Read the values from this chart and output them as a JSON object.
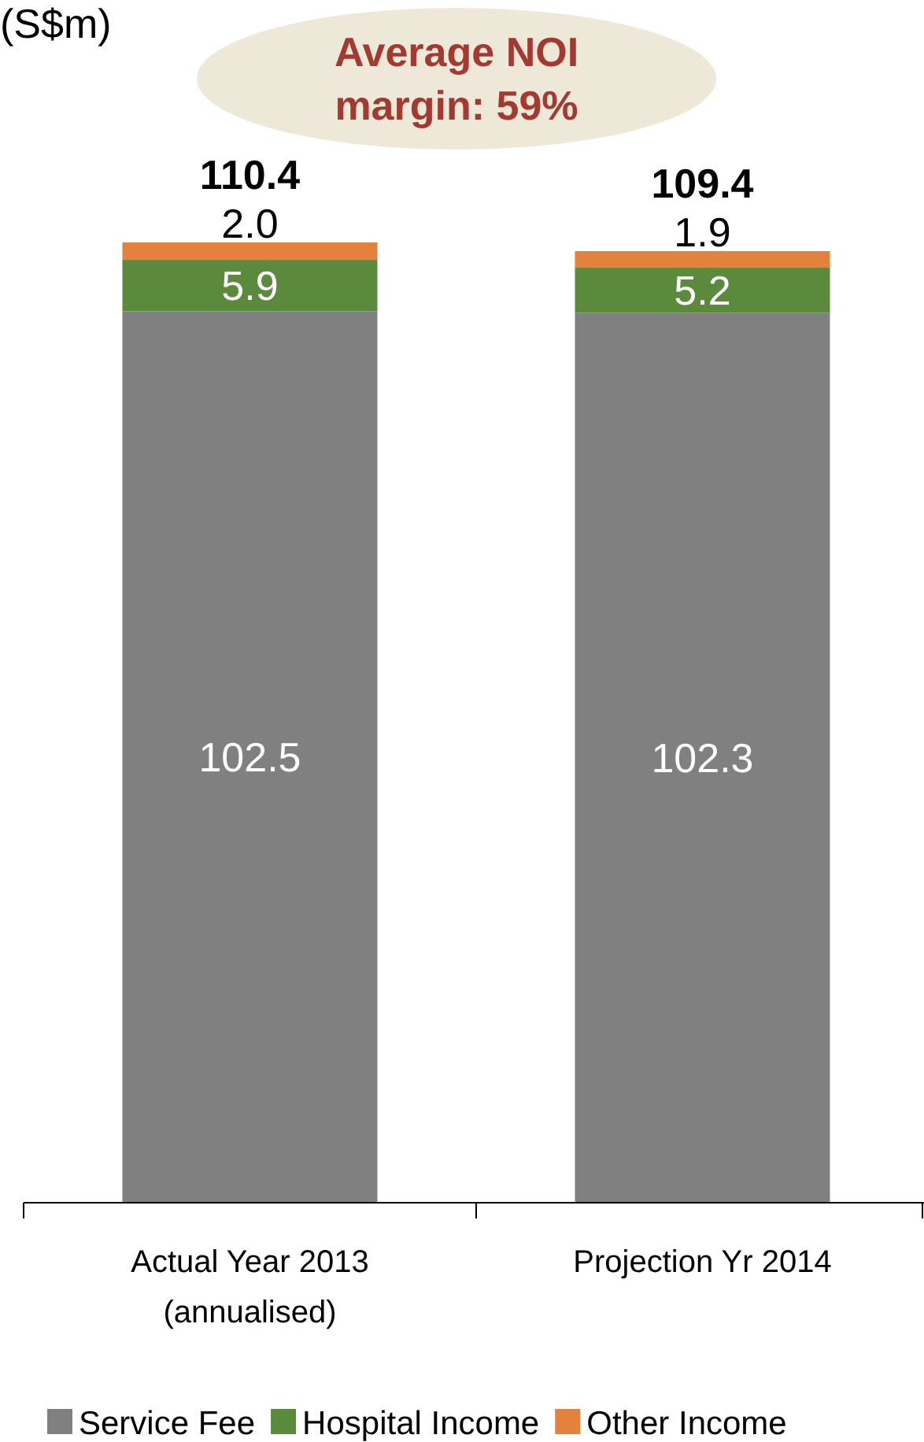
{
  "chart_data": {
    "type": "bar",
    "ylabel": "(S$m)",
    "stacked": true,
    "legend": "bottom",
    "categories": [
      "Actual Year 2013\n(annualised)",
      "Projection Yr 2014"
    ],
    "series": [
      {
        "name": "Service Fee",
        "color": "#808080",
        "values": [
          102.5,
          102.3
        ],
        "value_labels": [
          "102.5",
          "102.3"
        ]
      },
      {
        "name": "Hospital Income",
        "color": "#5b8a3c",
        "values": [
          5.9,
          5.2
        ],
        "value_labels": [
          "5.9",
          "5.2"
        ]
      },
      {
        "name": "Other Income",
        "color": "#e2823c",
        "values": [
          2.0,
          1.9
        ],
        "value_labels": [
          "2.0",
          "1.9"
        ]
      }
    ],
    "totals": [
      "110.4",
      "109.4"
    ],
    "annotations": [
      "Average NOI margin: 59%"
    ]
  }
}
